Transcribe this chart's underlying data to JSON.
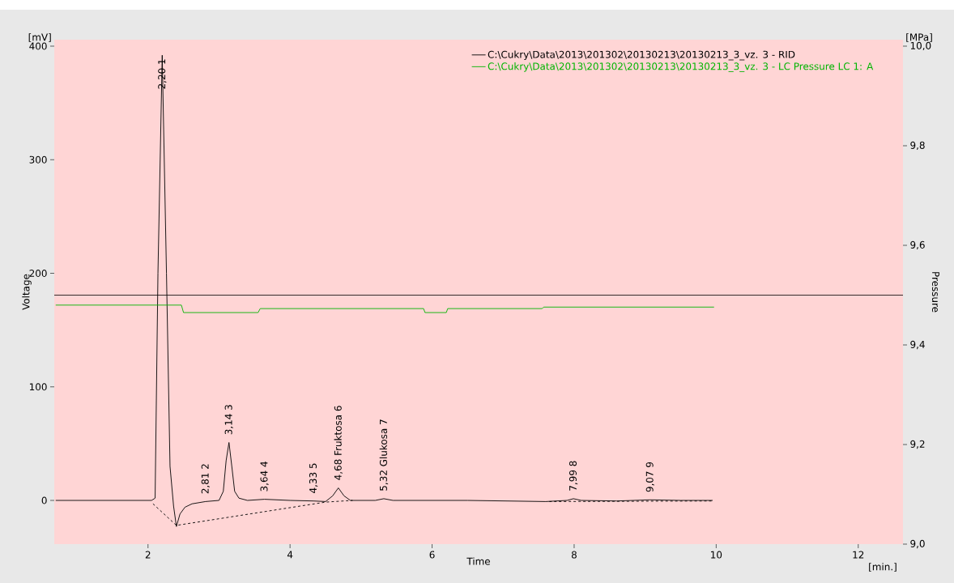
{
  "chart_data": {
    "type": "line",
    "xlabel": "Time",
    "ylabel": "Voltage",
    "y2label": "Pressure",
    "xlim": [
      0.68,
      12.63
    ],
    "xticks": [
      2,
      4,
      6,
      8,
      10,
      12
    ],
    "ylim": [
      -38.5,
      405.7
    ],
    "yticks": [
      0,
      100,
      200,
      300,
      400
    ],
    "y2lim": [
      9.0,
      10.013
    ],
    "y2ticks": [
      {
        "value": 9.0,
        "label": "9,0"
      },
      {
        "value": 9.2,
        "label": "9,2"
      },
      {
        "value": 9.4,
        "label": "9,4"
      },
      {
        "value": 9.6,
        "label": "9,6"
      },
      {
        "value": 9.8,
        "label": "9,8"
      },
      {
        "value": 10.0,
        "label": "10,0"
      }
    ],
    "grid": false,
    "legend": "top right",
    "series": [
      {
        "name": "C:\\Cukry\\Data\\2013\\201302\\20130213\\20130213_3_vz. 3 - RID",
        "color": "#000000",
        "x": [
          0.7,
          1.5,
          2.05,
          2.1,
          2.14,
          2.2,
          2.26,
          2.31,
          2.36,
          2.4,
          2.45,
          2.52,
          2.62,
          2.81,
          3.0,
          3.06,
          3.1,
          3.14,
          3.18,
          3.22,
          3.28,
          3.4,
          3.64,
          4.0,
          4.33,
          4.5,
          4.6,
          4.68,
          4.76,
          4.85,
          5.2,
          5.32,
          5.45,
          6.5,
          7.6,
          7.9,
          7.99,
          8.1,
          8.6,
          9.07,
          9.5,
          9.95
        ],
        "values": [
          0,
          0,
          0,
          2,
          200,
          392,
          200,
          30,
          -5,
          -23,
          -12,
          -6,
          -3,
          -1,
          0,
          8,
          35,
          51,
          30,
          8,
          2,
          0,
          1,
          0,
          -0.5,
          -1,
          4,
          11,
          4,
          0,
          0,
          1.5,
          0,
          0,
          -1,
          0,
          1.5,
          0,
          -0.5,
          0.5,
          0,
          0
        ]
      },
      {
        "color": "#000000",
        "line_style": "dashed",
        "x": [
          2.07,
          2.4,
          4.5,
          4.88
        ],
        "values": [
          -3,
          -22,
          -1.5,
          0
        ]
      },
      {
        "color": "#000000",
        "line_style": "dashed",
        "x": [
          7.65,
          9.95
        ],
        "values": [
          -1,
          -0.5
        ]
      },
      {
        "name": "C:\\Cukry\\Data\\2013\\201302\\20130213\\20130213_3_vz. 3 - LC Pressure LC 1: A",
        "color": "#00b400",
        "axis": "y2",
        "x": [
          0.7,
          2.47,
          2.5,
          3.55,
          3.58,
          5.88,
          5.9,
          6.2,
          6.22,
          7.55,
          7.57,
          9.97
        ],
        "values": [
          9.48,
          9.48,
          9.465,
          9.465,
          9.473,
          9.473,
          9.465,
          9.465,
          9.473,
          9.473,
          9.476,
          9.476
        ]
      }
    ],
    "ref_lines": [
      {
        "axis": "y2",
        "value": 9.5,
        "color": "#000000"
      }
    ],
    "annotations": [
      "[mV]",
      "[MPa]",
      "[min.]",
      {
        "text": "2,20 1",
        "x": 2.2,
        "y": 392
      },
      {
        "text": "2,81 2",
        "x": 2.81,
        "y": -1
      },
      {
        "text": "3,14 3",
        "x": 3.14,
        "y": 51
      },
      {
        "text": "3,64 4",
        "x": 3.64,
        "y": 1
      },
      {
        "text": "4,33 5",
        "x": 4.33,
        "y": -0.5
      },
      {
        "text": "4,68 Fruktosa 6",
        "x": 4.68,
        "y": 11
      },
      {
        "text": "5,32 Glukosa 7",
        "x": 5.32,
        "y": 1.5
      },
      {
        "text": "7,99 8",
        "x": 7.99,
        "y": 1.5
      },
      {
        "text": "9,07 9",
        "x": 9.07,
        "y": 0.5
      }
    ]
  }
}
